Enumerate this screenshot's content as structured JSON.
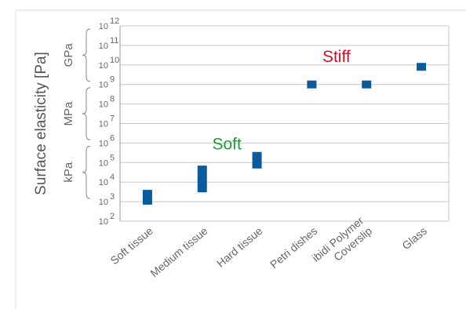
{
  "chart_data": {
    "type": "range-bar",
    "title": "",
    "ylabel": "Surface elasticity [Pa]",
    "yscale": "log",
    "ylim": [
      100,
      1000000000000
    ],
    "ytick_exponents": [
      2,
      3,
      4,
      5,
      6,
      7,
      8,
      9,
      10,
      11,
      12
    ],
    "ytick_base": "10",
    "grid": true,
    "categories": [
      "Soft tissue",
      "Medium tissue",
      "Hard tissue",
      "Petri dishes",
      "ibidi Polymer Coverslip",
      "Glass"
    ],
    "category_label_lines": [
      [
        "Soft tissue"
      ],
      [
        "Medium tissue"
      ],
      [
        "Hard tissue"
      ],
      [
        "Petri dishes"
      ],
      [
        "ibidi Polymer",
        "Coverslip"
      ],
      [
        "Glass"
      ]
    ],
    "ranges": [
      {
        "low": 700,
        "high": 4000
      },
      {
        "low": 3000,
        "high": 70000
      },
      {
        "low": 50000,
        "high": 350000
      },
      {
        "low": 1000000000,
        "high": 1000000000
      },
      {
        "low": 1000000000,
        "high": 1000000000
      },
      {
        "low": 8000000000,
        "high": 8000000000
      }
    ],
    "unit_groups": [
      {
        "label": "kPa",
        "low": 1000,
        "high": 1000000
      },
      {
        "label": "MPa",
        "low": 1000000,
        "high": 1000000000
      },
      {
        "label": "GPa",
        "low": 1000000000,
        "high": 1000000000000
      }
    ],
    "annotations": [
      {
        "text": "Soft",
        "color": "#1e9a3c",
        "x_category": 2,
        "y": 1000000
      },
      {
        "text": "Stiff",
        "color": "#c8102e",
        "x_category": 4,
        "y": 30000000000
      }
    ],
    "bar_color": "#0a5a9c",
    "grid_color": "#c8c8c8",
    "text_color": "#666666"
  }
}
